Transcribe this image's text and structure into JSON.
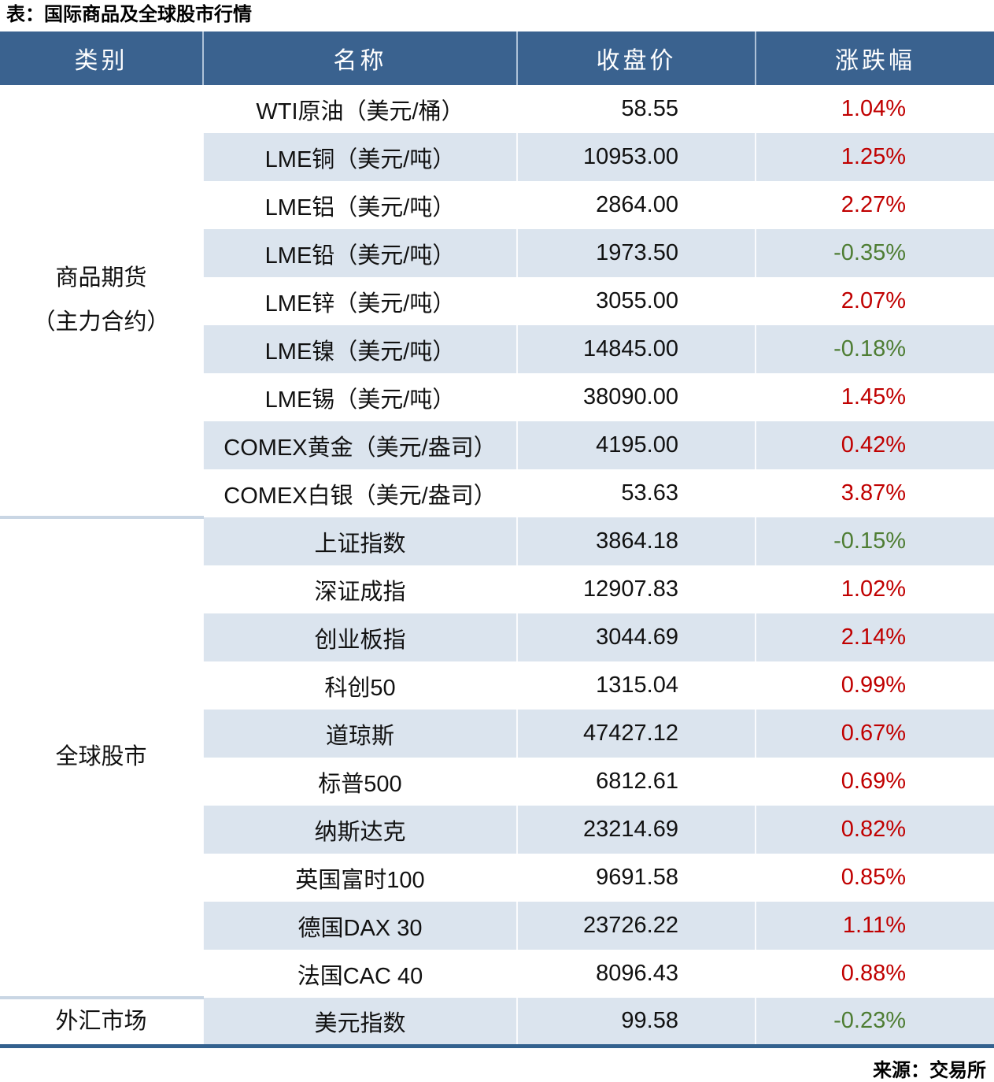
{
  "title": "表：国际商品及全球股市行情",
  "source": "来源：交易所",
  "colors": {
    "header_bg": "#3a628f",
    "row_alt": "#dbe4ee",
    "positive_change": "#c00000",
    "negative_change": "#4e7d33",
    "bottom_rule": "#33618e"
  },
  "table": {
    "headers": [
      "类别",
      "名称",
      "收盘价",
      "涨跌幅"
    ],
    "groups": [
      {
        "category": "商品期货\n（主力合约）",
        "rows": [
          {
            "name": "WTI原油（美元/桶）",
            "close": "58.55",
            "change": "1.04%"
          },
          {
            "name": "LME铜（美元/吨）",
            "close": "10953.00",
            "change": "1.25%"
          },
          {
            "name": "LME铝（美元/吨）",
            "close": "2864.00",
            "change": "2.27%"
          },
          {
            "name": "LME铅（美元/吨）",
            "close": "1973.50",
            "change": "-0.35%"
          },
          {
            "name": "LME锌（美元/吨）",
            "close": "3055.00",
            "change": "2.07%"
          },
          {
            "name": "LME镍（美元/吨）",
            "close": "14845.00",
            "change": "-0.18%"
          },
          {
            "name": "LME锡（美元/吨）",
            "close": "38090.00",
            "change": "1.45%"
          },
          {
            "name": "COMEX黄金（美元/盎司）",
            "close": "4195.00",
            "change": "0.42%"
          },
          {
            "name": "COMEX白银（美元/盎司）",
            "close": "53.63",
            "change": "3.87%"
          }
        ]
      },
      {
        "category": "全球股市",
        "rows": [
          {
            "name": "上证指数",
            "close": "3864.18",
            "change": "-0.15%"
          },
          {
            "name": "深证成指",
            "close": "12907.83",
            "change": "1.02%"
          },
          {
            "name": "创业板指",
            "close": "3044.69",
            "change": "2.14%"
          },
          {
            "name": "科创50",
            "close": "1315.04",
            "change": "0.99%"
          },
          {
            "name": "道琼斯",
            "close": "47427.12",
            "change": "0.67%"
          },
          {
            "name": "标普500",
            "close": "6812.61",
            "change": "0.69%"
          },
          {
            "name": "纳斯达克",
            "close": "23214.69",
            "change": "0.82%"
          },
          {
            "name": "英国富时100",
            "close": "9691.58",
            "change": "0.85%"
          },
          {
            "name": "德国DAX 30",
            "close": "23726.22",
            "change": "1.11%"
          },
          {
            "name": "法国CAC 40",
            "close": "8096.43",
            "change": "0.88%"
          }
        ]
      },
      {
        "category": "外汇市场",
        "rows": [
          {
            "name": "美元指数",
            "close": "99.58",
            "change": "-0.23%"
          }
        ]
      }
    ]
  }
}
